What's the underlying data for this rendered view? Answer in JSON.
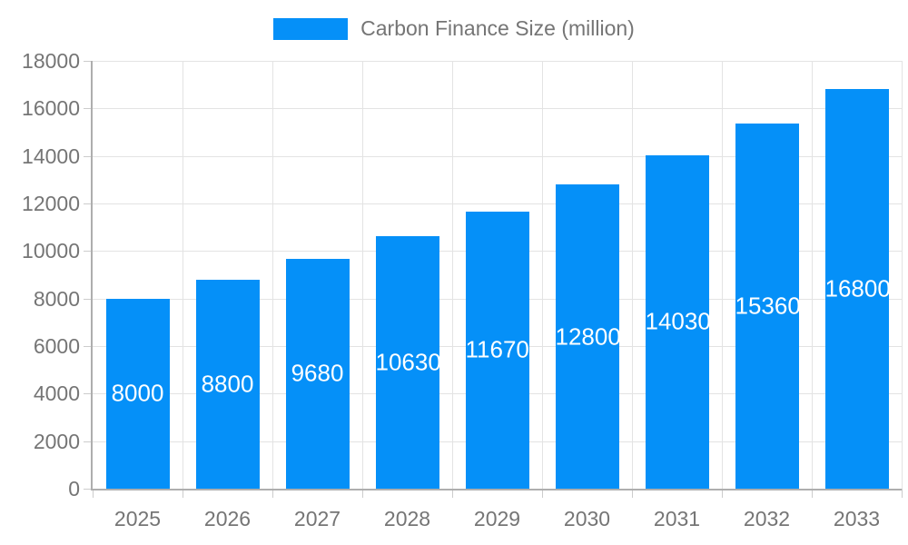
{
  "legend": {
    "label": "Carbon Finance Size (million)"
  },
  "colors": {
    "bar": "#0590f8",
    "axis_text": "#757575",
    "grid_line": "#e3e3e3",
    "axis_line": "#aeaeae",
    "tick": "#cccccc",
    "value_label": "#ffffff",
    "background": "#ffffff"
  },
  "chart_data": {
    "type": "bar",
    "title": "Carbon Finance Size (million)",
    "categories": [
      "2025",
      "2026",
      "2027",
      "2028",
      "2029",
      "2030",
      "2031",
      "2032",
      "2033"
    ],
    "values": [
      8000,
      8800,
      9680,
      10630,
      11670,
      12800,
      14030,
      15360,
      16800
    ],
    "xlabel": "",
    "ylabel": "",
    "ylim": [
      0,
      18000
    ],
    "ytick_step": 2000,
    "ytick_labels": [
      "0",
      "2000",
      "4000",
      "6000",
      "8000",
      "10000",
      "12000",
      "14000",
      "16000",
      "18000"
    ],
    "grid": true,
    "legend_position": "top",
    "value_labels": "inside-center"
  }
}
